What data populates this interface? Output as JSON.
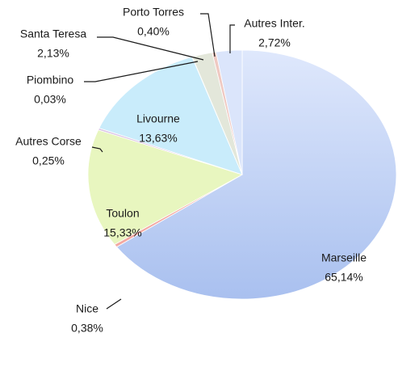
{
  "chart_data": {
    "type": "pie",
    "categories": [
      "Marseille",
      "Nice",
      "Toulon",
      "Autres Corse",
      "Livourne",
      "Piombino",
      "Santa Teresa",
      "Porto Torres",
      "Autres Inter."
    ],
    "values": [
      65.14,
      0.38,
      15.33,
      0.25,
      13.63,
      0.03,
      2.13,
      0.4,
      2.72
    ],
    "value_labels": [
      "65,14%",
      "0,38%",
      "15,33%",
      "0,25%",
      "13,63%",
      "0,03%",
      "2,13%",
      "0,40%",
      "2,72%"
    ],
    "colors": [
      "#bccdf3",
      "#f3a9a2",
      "#e8f6bf",
      "#dcc6e6",
      "#c9ecfb",
      "#d6e4c8",
      "#e3e7da",
      "#efc9c2",
      "#dbe5fb"
    ]
  }
}
